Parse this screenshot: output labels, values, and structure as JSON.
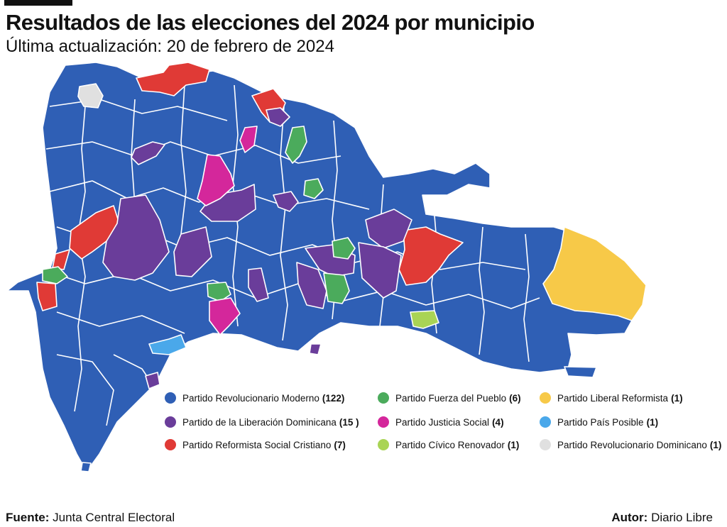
{
  "header": {
    "title": "Resultados de las elecciones del 2024 por municipio",
    "subtitle": "Última actualización: 20 de febrero de 2024"
  },
  "colors": {
    "prm": "#2f5fb5",
    "pld": "#6a3d9a",
    "prsc": "#e03a36",
    "fp": "#4bab5c",
    "pjs": "#d4279b",
    "pcr": "#a9d455",
    "plr": "#f7c948",
    "ppp": "#4aa8ea",
    "prd": "#e0e0e0"
  },
  "legend": [
    {
      "label": "Partido Revolucionario Moderno",
      "count": "(122)",
      "color": "#2f5fb5"
    },
    {
      "label": "Partido de la Liberación Dominicana",
      "count": "(15 )",
      "color": "#6a3d9a"
    },
    {
      "label": "Partido Reformista Social Cristiano",
      "count": "(7)",
      "color": "#e03a36"
    },
    {
      "label": "Partido Fuerza del Pueblo",
      "count": "(6)",
      "color": "#4bab5c"
    },
    {
      "label": "Partido Justicia Social",
      "count": "(4)",
      "color": "#d4279b"
    },
    {
      "label": "Partido Cívico Renovador",
      "count": "(1)",
      "color": "#a9d455"
    },
    {
      "label": "Partido Liberal Reformista",
      "count": "(1)",
      "color": "#f7c948"
    },
    {
      "label": "Partido País Posible",
      "count": "(1)",
      "color": "#4aa8ea"
    },
    {
      "label": "Partido Revolucionario Dominicano",
      "count": "(1)",
      "color": "#e0e0e0"
    }
  ],
  "footer": {
    "source_label": "Fuente:",
    "source_value": "Junta Central Electoral",
    "author_label": "Autor:",
    "author_value": "Diario Libre"
  }
}
